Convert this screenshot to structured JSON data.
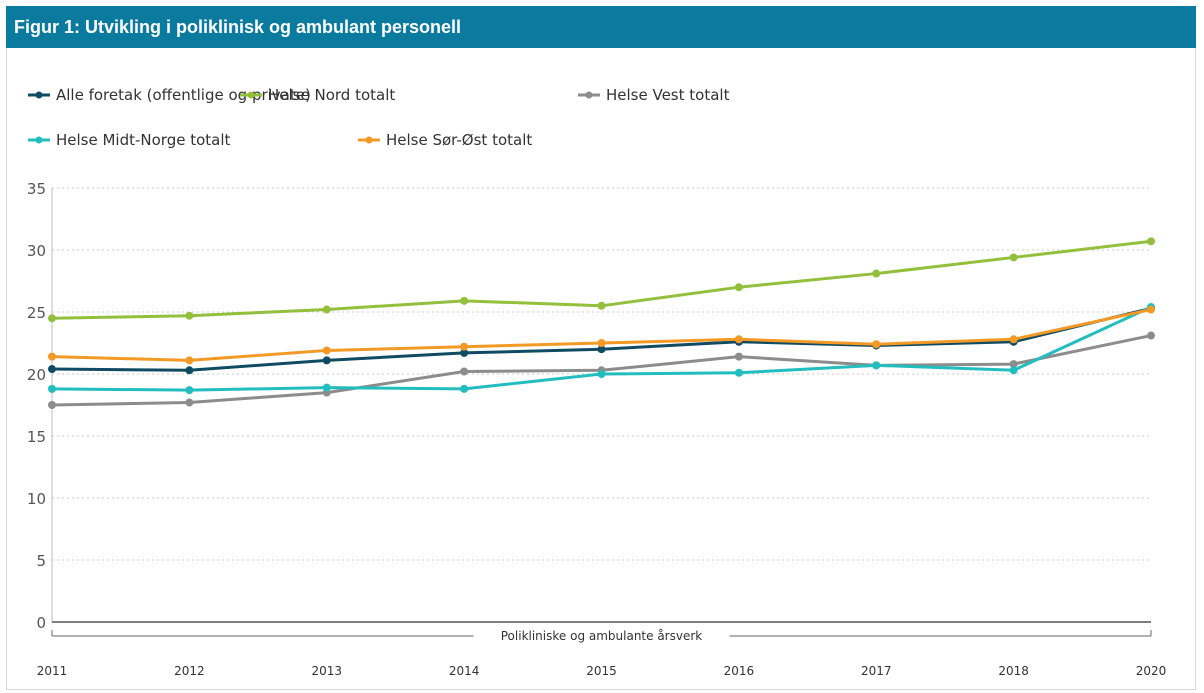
{
  "header": {
    "title": "Figur 1: Utvikling i poliklinisk og ambulant personell"
  },
  "chart_data": {
    "type": "line",
    "title": "Figur 1: Utvikling i poliklinisk og ambulant personell",
    "xlabel": "Polikliniske og ambulante årsverk",
    "ylabel": "",
    "x": [
      "2011",
      "2012",
      "2013",
      "2014",
      "2015",
      "2016",
      "2017",
      "2018",
      "2020"
    ],
    "ylim": [
      0,
      35
    ],
    "yticks": [
      "0",
      "5",
      "10",
      "15",
      "20",
      "25",
      "30",
      "35"
    ],
    "grid": true,
    "legend_position": "top",
    "series": [
      {
        "name": "Alle foretak (offentlige og private)",
        "color": "#0f4c63",
        "values": [
          20.4,
          20.3,
          21.1,
          21.7,
          22.0,
          22.6,
          22.3,
          22.6,
          25.3
        ]
      },
      {
        "name": "Helse Nord totalt",
        "color": "#93bf3d",
        "values": [
          24.5,
          24.7,
          25.2,
          25.9,
          25.5,
          27.0,
          28.1,
          29.4,
          30.7
        ]
      },
      {
        "name": "Helse Vest totalt",
        "color": "#8c8c8c",
        "values": [
          17.5,
          17.7,
          18.5,
          20.2,
          20.3,
          21.4,
          20.7,
          20.8,
          23.1
        ]
      },
      {
        "name": "Helse Midt-Norge totalt",
        "color": "#22bdbf",
        "values": [
          18.8,
          18.7,
          18.9,
          18.8,
          20.0,
          20.1,
          20.7,
          20.3,
          25.4
        ]
      },
      {
        "name": "Helse Sør-Øst totalt",
        "color": "#f29a25",
        "values": [
          21.4,
          21.1,
          21.9,
          22.2,
          22.5,
          22.8,
          22.4,
          22.8,
          25.2
        ]
      }
    ]
  }
}
